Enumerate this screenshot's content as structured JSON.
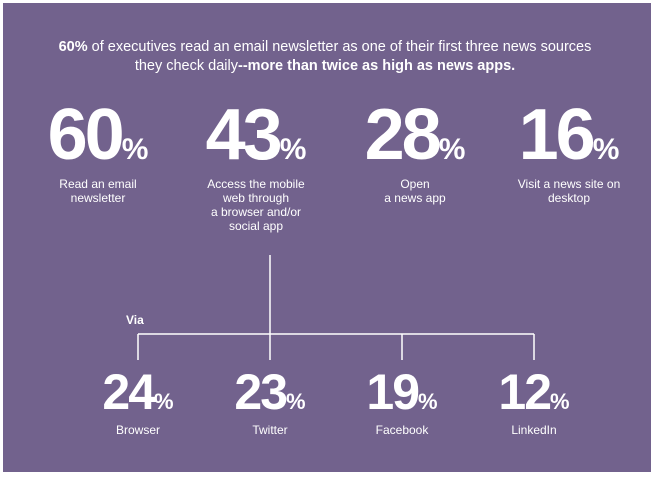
{
  "headline": {
    "lead_bold": "60%",
    "line1_rest": " of executives read an email newsletter as one of their first three news sources",
    "line2_plain": "they check daily",
    "line2_bold": "--more than twice as high as news apps."
  },
  "top_stats": [
    {
      "value": "60",
      "unit": "%",
      "caption": [
        "Read an email",
        "newsletter"
      ]
    },
    {
      "value": "43",
      "unit": "%",
      "caption": [
        "Access the mobile",
        "web through",
        "a browser and/or",
        "social app"
      ]
    },
    {
      "value": "28",
      "unit": "%",
      "caption": [
        "Open",
        "a news app"
      ]
    },
    {
      "value": "16",
      "unit": "%",
      "caption": [
        "Visit a news site on",
        "desktop"
      ]
    }
  ],
  "via_label": "Via",
  "bottom_stats": [
    {
      "value": "24",
      "unit": "%",
      "caption": "Browser"
    },
    {
      "value": "23",
      "unit": "%",
      "caption": "Twitter"
    },
    {
      "value": "19",
      "unit": "%",
      "caption": "Facebook"
    },
    {
      "value": "12",
      "unit": "%",
      "caption": "LinkedIn"
    }
  ],
  "colors": {
    "background": "#72628d",
    "text": "#ffffff",
    "lines": "#ffffff"
  }
}
